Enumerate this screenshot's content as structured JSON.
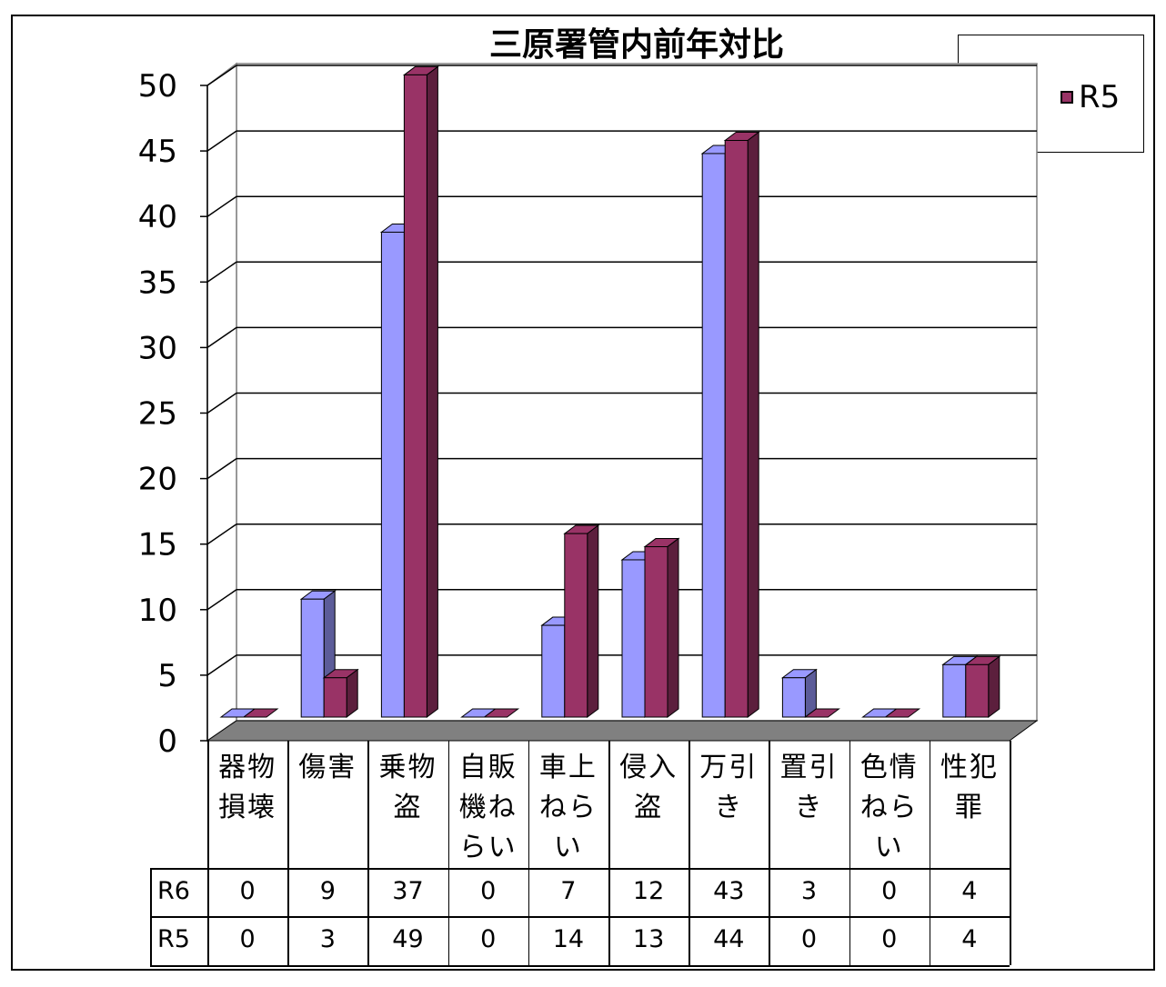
{
  "chart_data": {
    "type": "bar",
    "title": "三原署管内前年対比",
    "categories": [
      [
        "器物",
        "損壊"
      ],
      [
        "傷害"
      ],
      [
        "乗物",
        "盗"
      ],
      [
        "自販",
        "機ね",
        "らい"
      ],
      [
        "車上",
        "ねら",
        "い"
      ],
      [
        "侵入",
        "盗"
      ],
      [
        "万引",
        "き"
      ],
      [
        "置引",
        "き"
      ],
      [
        "色情",
        "ねら",
        "い"
      ],
      [
        "性犯",
        "罪"
      ]
    ],
    "series": [
      {
        "name": "R6",
        "values": [
          0,
          9,
          37,
          0,
          7,
          12,
          43,
          3,
          0,
          4
        ],
        "color": "#9999ff"
      },
      {
        "name": "R5",
        "values": [
          0,
          3,
          49,
          0,
          14,
          13,
          44,
          0,
          0,
          4
        ],
        "color": "#993366"
      }
    ],
    "y_ticks": [
      "0",
      "5",
      "10",
      "15",
      "20",
      "25",
      "30",
      "35",
      "40",
      "45",
      "50"
    ],
    "ylim": [
      0,
      50
    ],
    "grid": true,
    "legend_position": "top-right",
    "floor_color": "#808080"
  }
}
